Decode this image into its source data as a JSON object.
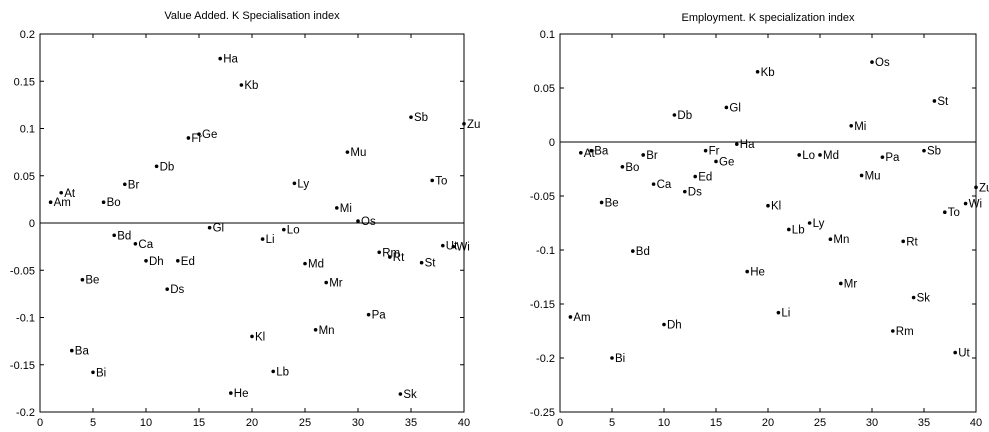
{
  "chart_data": [
    {
      "type": "scatter",
      "title": "Value Added. K Specialisation index",
      "xlabel": "",
      "ylabel": "",
      "xlim": [
        0,
        40
      ],
      "ylim": [
        -0.2,
        0.2
      ],
      "xticks": [
        0,
        5,
        10,
        15,
        20,
        25,
        30,
        35,
        40
      ],
      "yticks": [
        -0.2,
        -0.15,
        -0.1,
        -0.05,
        0,
        0.05,
        0.1,
        0.15,
        0.2
      ],
      "ytick_labels": [
        "-0.2",
        "-0.15",
        "-0.1",
        "-0.05",
        "0",
        "0.05",
        "0.1",
        "0.15",
        "0.2"
      ],
      "reference_line_y": 0,
      "points": [
        {
          "label": "Am",
          "x": 1,
          "y": 0.022
        },
        {
          "label": "At",
          "x": 2,
          "y": 0.032
        },
        {
          "label": "Ba",
          "x": 3,
          "y": -0.135
        },
        {
          "label": "Be",
          "x": 4,
          "y": -0.06
        },
        {
          "label": "Bi",
          "x": 5,
          "y": -0.158
        },
        {
          "label": "Bo",
          "x": 6,
          "y": 0.022
        },
        {
          "label": "Bd",
          "x": 7,
          "y": -0.013
        },
        {
          "label": "Br",
          "x": 8,
          "y": 0.041
        },
        {
          "label": "Ca",
          "x": 9,
          "y": -0.022
        },
        {
          "label": "Dh",
          "x": 10,
          "y": -0.04
        },
        {
          "label": "Db",
          "x": 11,
          "y": 0.06
        },
        {
          "label": "Ds",
          "x": 12,
          "y": -0.07
        },
        {
          "label": "Ed",
          "x": 13,
          "y": -0.04
        },
        {
          "label": "Fr",
          "x": 14,
          "y": 0.09
        },
        {
          "label": "Ge",
          "x": 15,
          "y": 0.094
        },
        {
          "label": "Gl",
          "x": 16,
          "y": -0.005
        },
        {
          "label": "Ha",
          "x": 17,
          "y": 0.174
        },
        {
          "label": "He",
          "x": 18,
          "y": -0.18
        },
        {
          "label": "Kb",
          "x": 19,
          "y": 0.146
        },
        {
          "label": "Kl",
          "x": 20,
          "y": -0.12
        },
        {
          "label": "Li",
          "x": 21,
          "y": -0.017
        },
        {
          "label": "Lb",
          "x": 22,
          "y": -0.157
        },
        {
          "label": "Lo",
          "x": 23,
          "y": -0.007
        },
        {
          "label": "Ly",
          "x": 24,
          "y": 0.042
        },
        {
          "label": "Md",
          "x": 25,
          "y": -0.043
        },
        {
          "label": "Mn",
          "x": 26,
          "y": -0.113
        },
        {
          "label": "Mr",
          "x": 27,
          "y": -0.063
        },
        {
          "label": "Mi",
          "x": 28,
          "y": 0.016
        },
        {
          "label": "Mu",
          "x": 29,
          "y": 0.075
        },
        {
          "label": "Os",
          "x": 30,
          "y": 0.002
        },
        {
          "label": "Pa",
          "x": 31,
          "y": -0.097
        },
        {
          "label": "Rm",
          "x": 32,
          "y": -0.031
        },
        {
          "label": "Rt",
          "x": 33,
          "y": -0.036
        },
        {
          "label": "Sk",
          "x": 34,
          "y": -0.181
        },
        {
          "label": "Sb",
          "x": 35,
          "y": 0.112
        },
        {
          "label": "St",
          "x": 36,
          "y": -0.042
        },
        {
          "label": "To",
          "x": 37,
          "y": 0.045
        },
        {
          "label": "Ut",
          "x": 38,
          "y": -0.024
        },
        {
          "label": "Wi",
          "x": 39,
          "y": -0.025
        },
        {
          "label": "Zu",
          "x": 40,
          "y": 0.105
        }
      ]
    },
    {
      "type": "scatter",
      "title": "Employment. K specialization index",
      "xlabel": "",
      "ylabel": "",
      "xlim": [
        0,
        40
      ],
      "ylim": [
        -0.25,
        0.1
      ],
      "xticks": [
        0,
        5,
        10,
        15,
        20,
        25,
        30,
        35,
        40
      ],
      "yticks": [
        -0.25,
        -0.2,
        -0.15,
        -0.1,
        -0.05,
        0,
        0.05,
        0.1
      ],
      "ytick_labels": [
        "-0.25",
        "-0.2",
        "-0.15",
        "-0.1",
        "-0.05",
        "0",
        "0.05",
        "0.1"
      ],
      "reference_line_y": 0,
      "points": [
        {
          "label": "Am",
          "x": 1,
          "y": -0.162
        },
        {
          "label": "At",
          "x": 2,
          "y": -0.01
        },
        {
          "label": "Ba",
          "x": 3,
          "y": -0.008
        },
        {
          "label": "Be",
          "x": 4,
          "y": -0.056
        },
        {
          "label": "Bi",
          "x": 5,
          "y": -0.2
        },
        {
          "label": "Bo",
          "x": 6,
          "y": -0.023
        },
        {
          "label": "Bd",
          "x": 7,
          "y": -0.101
        },
        {
          "label": "Br",
          "x": 8,
          "y": -0.012
        },
        {
          "label": "Ca",
          "x": 9,
          "y": -0.039
        },
        {
          "label": "Dh",
          "x": 10,
          "y": -0.169
        },
        {
          "label": "Db",
          "x": 11,
          "y": 0.025
        },
        {
          "label": "Ds",
          "x": 12,
          "y": -0.046
        },
        {
          "label": "Ed",
          "x": 13,
          "y": -0.032
        },
        {
          "label": "Fr",
          "x": 14,
          "y": -0.008
        },
        {
          "label": "Ge",
          "x": 15,
          "y": -0.018
        },
        {
          "label": "Gl",
          "x": 16,
          "y": 0.032
        },
        {
          "label": "Ha",
          "x": 17,
          "y": -0.002
        },
        {
          "label": "He",
          "x": 18,
          "y": -0.12
        },
        {
          "label": "Kb",
          "x": 19,
          "y": 0.065
        },
        {
          "label": "Kl",
          "x": 20,
          "y": -0.059
        },
        {
          "label": "Li",
          "x": 21,
          "y": -0.158
        },
        {
          "label": "Lb",
          "x": 22,
          "y": -0.081
        },
        {
          "label": "Lo",
          "x": 23,
          "y": -0.012
        },
        {
          "label": "Ly",
          "x": 24,
          "y": -0.075
        },
        {
          "label": "Md",
          "x": 25,
          "y": -0.012
        },
        {
          "label": "Mn",
          "x": 26,
          "y": -0.09
        },
        {
          "label": "Mr",
          "x": 27,
          "y": -0.131
        },
        {
          "label": "Mi",
          "x": 28,
          "y": 0.015
        },
        {
          "label": "Mu",
          "x": 29,
          "y": -0.031
        },
        {
          "label": "Os",
          "x": 30,
          "y": 0.074
        },
        {
          "label": "Pa",
          "x": 31,
          "y": -0.014
        },
        {
          "label": "Rm",
          "x": 32,
          "y": -0.175
        },
        {
          "label": "Rt",
          "x": 33,
          "y": -0.092
        },
        {
          "label": "Sk",
          "x": 34,
          "y": -0.144
        },
        {
          "label": "Sb",
          "x": 35,
          "y": -0.008
        },
        {
          "label": "St",
          "x": 36,
          "y": 0.038
        },
        {
          "label": "To",
          "x": 37,
          "y": -0.065
        },
        {
          "label": "Ut",
          "x": 38,
          "y": -0.195
        },
        {
          "label": "Wi",
          "x": 39,
          "y": -0.057
        },
        {
          "label": "Zu",
          "x": 40,
          "y": -0.042
        }
      ]
    }
  ]
}
